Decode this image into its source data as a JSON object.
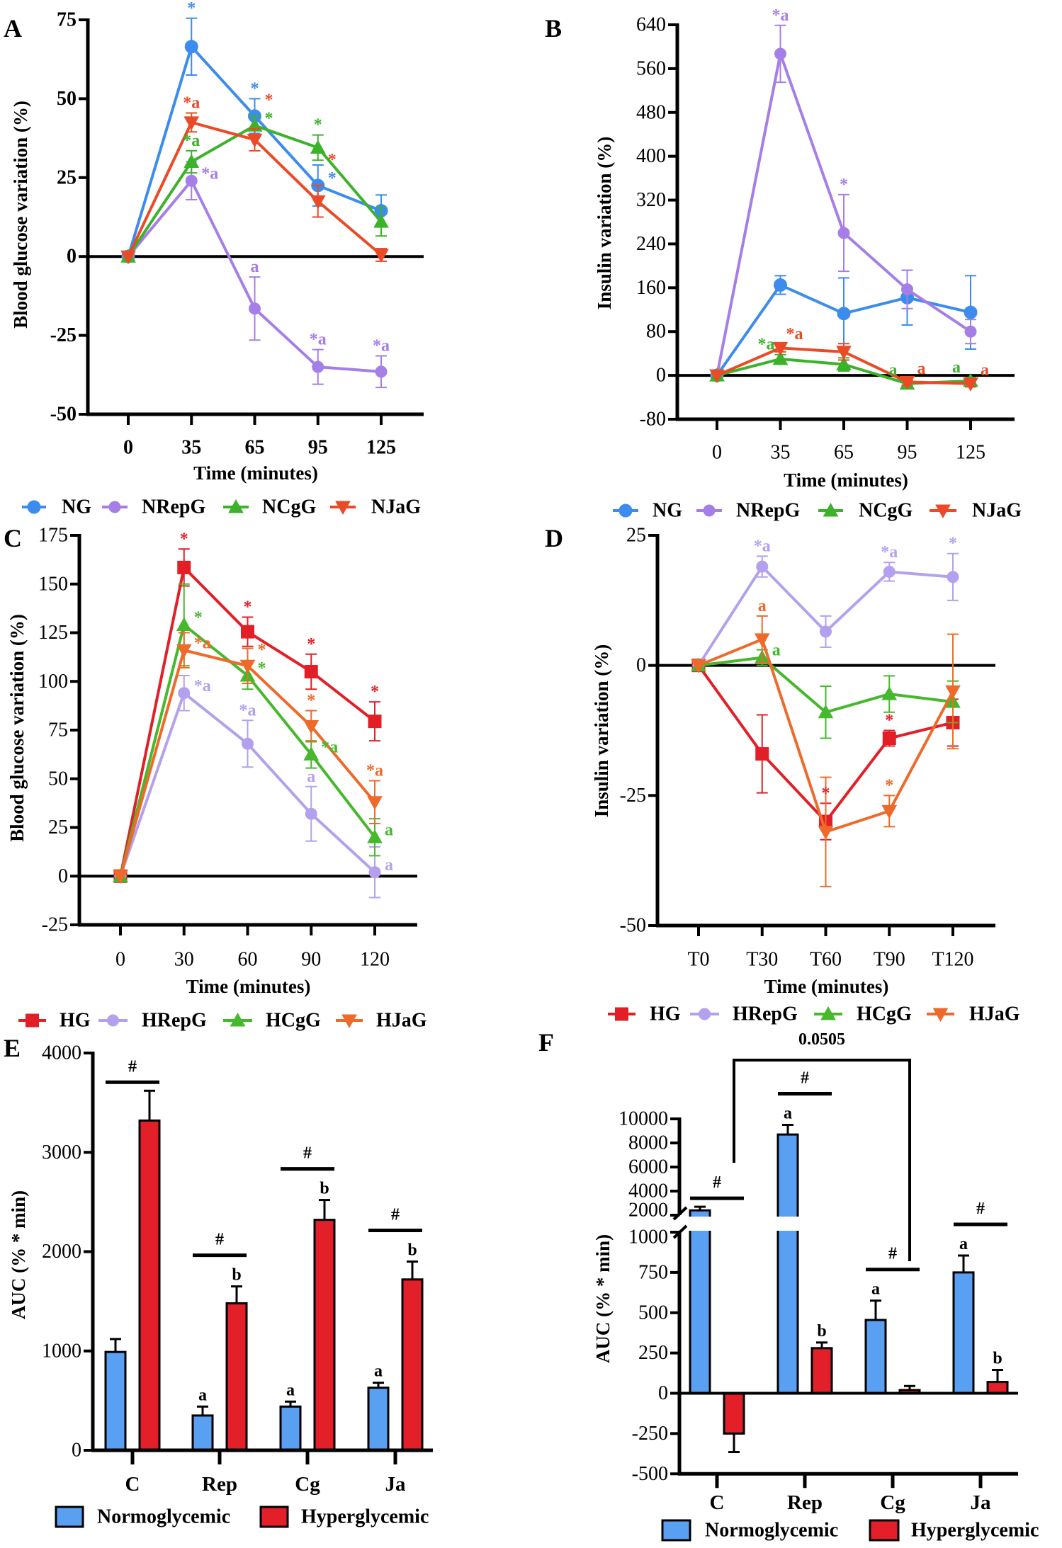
{
  "chart_data": [
    {
      "panel_label": "A",
      "type": "line",
      "xlabel": "Time (minutes)",
      "ylabel": "Blood glucose variation (%)",
      "categories": [
        "0",
        "35",
        "65",
        "95",
        "125"
      ],
      "ylim": [
        -50,
        75
      ],
      "yticks": [
        75,
        50,
        25,
        0,
        -25,
        -50
      ],
      "legend": "bottom",
      "series": [
        {
          "name": "NG",
          "color": "#3b8ced",
          "marker": "circle",
          "values": [
            0,
            66.5,
            44.5,
            22.5,
            14.5
          ],
          "errors": [
            0,
            9,
            5.5,
            6.5,
            5
          ]
        },
        {
          "name": "NRepG",
          "color": "#a57ee8",
          "marker": "hexagon",
          "values": [
            0,
            24,
            -16.5,
            -35,
            -36.5
          ],
          "errors": [
            0,
            6,
            10,
            5.5,
            5
          ]
        },
        {
          "name": "NCgG",
          "color": "#3cb22b",
          "marker": "triangle-up",
          "values": [
            0,
            30,
            41.5,
            34.5,
            11
          ],
          "errors": [
            0,
            3.5,
            3,
            4,
            4.5
          ]
        },
        {
          "name": "NJaG",
          "color": "#ea4a25",
          "marker": "triangle-down",
          "values": [
            0,
            42.5,
            37,
            17.5,
            0.5
          ],
          "errors": [
            0,
            3,
            3.5,
            5,
            2
          ]
        }
      ],
      "annotations": [
        {
          "series": 0,
          "index": 1,
          "text": "*",
          "placement": "above"
        },
        {
          "series": 0,
          "index": 2,
          "text": "*",
          "placement": "above"
        },
        {
          "series": 0,
          "index": 3,
          "text": "*",
          "placement": "right"
        },
        {
          "series": 1,
          "index": 1,
          "text": "*a",
          "placement": "right"
        },
        {
          "series": 1,
          "index": 2,
          "text": "a",
          "placement": "above"
        },
        {
          "series": 1,
          "index": 3,
          "text": "*a",
          "placement": "above"
        },
        {
          "series": 1,
          "index": 4,
          "text": "*a",
          "placement": "above"
        },
        {
          "series": 2,
          "index": 1,
          "text": "*a",
          "placement": "above"
        },
        {
          "series": 2,
          "index": 2,
          "text": "*",
          "placement": "right"
        },
        {
          "series": 2,
          "index": 3,
          "text": "*",
          "placement": "above"
        },
        {
          "series": 3,
          "index": 1,
          "text": "*a",
          "placement": "above"
        },
        {
          "series": 3,
          "index": 2,
          "text": "*",
          "placement": "right"
        },
        {
          "series": 3,
          "index": 3,
          "text": "*",
          "placement": "right"
        }
      ]
    },
    {
      "panel_label": "B",
      "type": "line",
      "xlabel": "Time (minutes)",
      "ylabel": "Insulin variation  (%)",
      "categories": [
        "0",
        "35",
        "65",
        "95",
        "125"
      ],
      "ylim": [
        -80,
        640
      ],
      "yticks": [
        640,
        560,
        480,
        400,
        320,
        240,
        160,
        80,
        0,
        -80
      ],
      "legend": "bottom",
      "series": [
        {
          "name": "NG",
          "color": "#3b8ced",
          "marker": "circle",
          "values": [
            0,
            165,
            113,
            142,
            115
          ],
          "errors": [
            0,
            17,
            65,
            50,
            67
          ]
        },
        {
          "name": "NRepG",
          "color": "#a57ee8",
          "marker": "hexagon",
          "values": [
            0,
            587,
            260,
            157,
            80
          ],
          "errors": [
            0,
            52,
            70,
            35,
            22
          ]
        },
        {
          "name": "NCgG",
          "color": "#3cb22b",
          "marker": "triangle-up",
          "values": [
            0,
            30,
            20,
            -15,
            -10
          ],
          "errors": [
            0,
            8,
            12,
            6,
            6
          ]
        },
        {
          "name": "NJaG",
          "color": "#ea4a25",
          "marker": "triangle-down",
          "values": [
            0,
            50,
            43,
            -12,
            -15
          ],
          "errors": [
            0,
            7,
            15,
            6,
            6
          ]
        }
      ],
      "annotations": [
        {
          "series": 1,
          "index": 1,
          "text": "*a",
          "placement": "above"
        },
        {
          "series": 1,
          "index": 2,
          "text": "*",
          "placement": "above"
        },
        {
          "series": 2,
          "index": 1,
          "text": "*a",
          "placement": "above-left"
        },
        {
          "series": 3,
          "index": 1,
          "text": "*a",
          "placement": "above-right"
        },
        {
          "series": 2,
          "index": 3,
          "text": "a",
          "placement": "above-left"
        },
        {
          "series": 3,
          "index": 3,
          "text": "a",
          "placement": "above-right"
        },
        {
          "series": 2,
          "index": 4,
          "text": "a",
          "placement": "above-left"
        },
        {
          "series": 3,
          "index": 4,
          "text": "a",
          "placement": "above-right"
        }
      ]
    },
    {
      "panel_label": "C",
      "type": "line",
      "xlabel": "Time (minutes)",
      "ylabel": "Blood glucose variation (%)",
      "categories": [
        "0",
        "30",
        "60",
        "90",
        "120"
      ],
      "ylim": [
        -25,
        175
      ],
      "yticks": [
        175,
        150,
        125,
        100,
        75,
        50,
        25,
        0,
        -25
      ],
      "legend": "bottom",
      "series": [
        {
          "name": "HG",
          "color": "#e21f26",
          "marker": "square",
          "values": [
            0,
            158.5,
            125.5,
            105,
            79.5
          ],
          "errors": [
            0,
            9.5,
            7.5,
            9,
            10
          ]
        },
        {
          "name": "HRepG",
          "color": "#b3a1ee",
          "marker": "hexagon",
          "values": [
            0,
            94,
            68,
            32,
            2
          ],
          "errors": [
            0,
            9,
            12,
            14,
            13
          ]
        },
        {
          "name": "HCgG",
          "color": "#45b82c",
          "marker": "triangle-up",
          "values": [
            0,
            129,
            103,
            62.5,
            20
          ],
          "errors": [
            0,
            21,
            7,
            7,
            9.5
          ]
        },
        {
          "name": "HJaG",
          "color": "#ee6a2a",
          "marker": "triangle-down",
          "values": [
            0,
            116,
            108,
            77,
            38
          ],
          "errors": [
            0,
            9,
            9,
            8,
            11
          ]
        }
      ],
      "annotations": [
        {
          "series": 0,
          "index": 1,
          "text": "*",
          "placement": "above"
        },
        {
          "series": 0,
          "index": 2,
          "text": "*",
          "placement": "above"
        },
        {
          "series": 0,
          "index": 3,
          "text": "*",
          "placement": "above"
        },
        {
          "series": 0,
          "index": 4,
          "text": "*",
          "placement": "above"
        },
        {
          "series": 2,
          "index": 1,
          "text": "*",
          "placement": "right"
        },
        {
          "series": 2,
          "index": 2,
          "text": "*",
          "placement": "right"
        },
        {
          "series": 2,
          "index": 3,
          "text": "*a",
          "placement": "right"
        },
        {
          "series": 2,
          "index": 4,
          "text": "a",
          "placement": "right"
        },
        {
          "series": 3,
          "index": 1,
          "text": "*a",
          "placement": "right"
        },
        {
          "series": 3,
          "index": 2,
          "text": "*",
          "placement": "right"
        },
        {
          "series": 3,
          "index": 3,
          "text": "*",
          "placement": "above"
        },
        {
          "series": 3,
          "index": 4,
          "text": "*a",
          "placement": "above"
        },
        {
          "series": 1,
          "index": 1,
          "text": "*a",
          "placement": "right"
        },
        {
          "series": 1,
          "index": 2,
          "text": "*a",
          "placement": "above"
        },
        {
          "series": 1,
          "index": 3,
          "text": "a",
          "placement": "above"
        },
        {
          "series": 1,
          "index": 4,
          "text": "a",
          "placement": "right"
        }
      ]
    },
    {
      "panel_label": "D",
      "type": "line",
      "xlabel": "Time (minutes)",
      "ylabel": "Insulin variation  (%)",
      "categories": [
        "T0",
        "T30",
        "T60",
        "T90",
        "T120"
      ],
      "ylim": [
        -50,
        25
      ],
      "yticks": [
        25,
        0,
        -25,
        -50
      ],
      "legend": "bottom",
      "series": [
        {
          "name": "HG",
          "color": "#e21f26",
          "marker": "square",
          "values": [
            0,
            -17,
            -30,
            -14,
            -11
          ],
          "errors": [
            0,
            7.5,
            3.5,
            1.5,
            4.5
          ]
        },
        {
          "name": "HRepG",
          "color": "#b3a1ee",
          "marker": "hexagon",
          "values": [
            0,
            19,
            6.5,
            18,
            17
          ],
          "errors": [
            0,
            2,
            3,
            1.8,
            4.5
          ]
        },
        {
          "name": "HCgG",
          "color": "#45b82c",
          "marker": "triangle-up",
          "values": [
            0,
            1.5,
            -9,
            -5.5,
            -7
          ],
          "errors": [
            0,
            1.5,
            5,
            3.5,
            4
          ]
        },
        {
          "name": "HJaG",
          "color": "#ee6a2a",
          "marker": "triangle-down",
          "values": [
            0,
            5,
            -32,
            -28,
            -5
          ],
          "errors": [
            0,
            4.5,
            10.5,
            3,
            11
          ]
        }
      ],
      "annotations": [
        {
          "series": 1,
          "index": 1,
          "text": "*a",
          "placement": "above"
        },
        {
          "series": 1,
          "index": 3,
          "text": "*a",
          "placement": "above"
        },
        {
          "series": 1,
          "index": 4,
          "text": "*",
          "placement": "above"
        },
        {
          "series": 3,
          "index": 1,
          "text": "a",
          "placement": "above"
        },
        {
          "series": 2,
          "index": 1,
          "text": "a",
          "placement": "right"
        },
        {
          "series": 0,
          "index": 2,
          "text": "*",
          "placement": "above"
        },
        {
          "series": 0,
          "index": 3,
          "text": "*",
          "placement": "above"
        },
        {
          "series": 3,
          "index": 3,
          "text": "*",
          "placement": "above"
        }
      ]
    },
    {
      "panel_label": "E",
      "type": "bar",
      "ylabel": "AUC (% * min)",
      "categories": [
        "C",
        "Rep",
        "Cg",
        "Ja"
      ],
      "ylim": [
        0,
        4000
      ],
      "yticks": [
        4000,
        3000,
        2000,
        1000,
        0
      ],
      "legend": "bottom",
      "series": [
        {
          "name": "Normoglycemic",
          "color": "#5aa0f2",
          "values": [
            990,
            350,
            440,
            630
          ],
          "errors": [
            130,
            90,
            50,
            50
          ]
        },
        {
          "name": "Hyperglycemic",
          "color": "#e3202a",
          "values": [
            3320,
            1480,
            2320,
            1720
          ],
          "errors": [
            300,
            170,
            200,
            180
          ]
        }
      ],
      "annotations": [
        {
          "series": 0,
          "index": 1,
          "text": "a"
        },
        {
          "series": 0,
          "index": 2,
          "text": "a"
        },
        {
          "series": 0,
          "index": 3,
          "text": "a"
        },
        {
          "series": 1,
          "index": 1,
          "text": "b"
        },
        {
          "series": 1,
          "index": 2,
          "text": "b"
        },
        {
          "series": 1,
          "index": 3,
          "text": "b"
        }
      ],
      "comparisons": [
        {
          "index": 0,
          "text": "#"
        },
        {
          "index": 1,
          "text": "#"
        },
        {
          "index": 2,
          "text": "#"
        },
        {
          "index": 3,
          "text": "#"
        }
      ]
    },
    {
      "panel_label": "F",
      "type": "bar",
      "ylabel": "AUC (% * min)",
      "categories": [
        "C",
        "Rep",
        "Cg",
        "Ja"
      ],
      "ylim": [
        -500,
        10000
      ],
      "axis_break": [
        1000,
        2000
      ],
      "yticks": [
        10000,
        8000,
        6000,
        4000,
        2000,
        1000,
        750,
        500,
        250,
        0,
        -250,
        -500
      ],
      "legend": "bottom",
      "series": [
        {
          "name": "Normoglycemic",
          "color": "#5aa0f2",
          "values": [
            2400,
            8700,
            455,
            750
          ],
          "errors": [
            300,
            800,
            120,
            105
          ]
        },
        {
          "name": "Hyperglycemic",
          "color": "#e3202a",
          "values": [
            -250,
            280,
            20,
            70
          ],
          "errors": [
            115,
            35,
            25,
            75
          ]
        }
      ],
      "annotations": [
        {
          "series": 0,
          "index": 1,
          "text": "a"
        },
        {
          "series": 0,
          "index": 2,
          "text": "a"
        },
        {
          "series": 0,
          "index": 3,
          "text": "a"
        },
        {
          "series": 1,
          "index": 1,
          "text": "b"
        },
        {
          "series": 1,
          "index": 3,
          "text": "b"
        }
      ],
      "comparisons": [
        {
          "index": 0,
          "text": "#"
        },
        {
          "index": 1,
          "text": "#"
        },
        {
          "index": 2,
          "text": "#"
        },
        {
          "index": 3,
          "text": "#"
        }
      ],
      "bracket": {
        "from_index": 0,
        "to_index": 2,
        "text": "0.0505"
      }
    }
  ]
}
